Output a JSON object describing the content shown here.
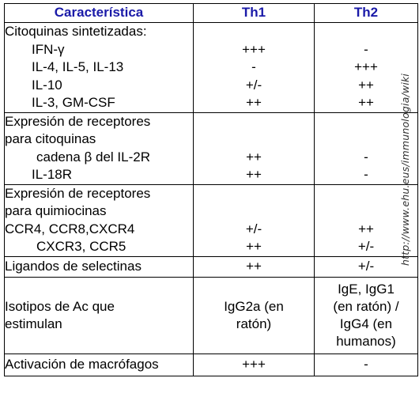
{
  "headers": {
    "feature": "Característica",
    "th1": "Th1",
    "th2": "Th2"
  },
  "sections": [
    {
      "lines": [
        {
          "label": "Citoquinas  sintetizadas:",
          "th1": "",
          "th2": "",
          "indent": 0
        },
        {
          "label": "IFN-γ",
          "th1": "+++",
          "th2": "-",
          "indent": 1
        },
        {
          "label": "IL-4, IL-5, IL-13",
          "th1": "-",
          "th2": "+++",
          "indent": 1
        },
        {
          "label": "IL-10",
          "th1": "+/-",
          "th2": "++",
          "indent": 1
        },
        {
          "label": "IL-3, GM-CSF",
          "th1": "++",
          "th2": "++",
          "indent": 1
        }
      ]
    },
    {
      "lines": [
        {
          "label": "Expresión de receptores",
          "th1": "",
          "th2": "",
          "indent": 0
        },
        {
          "label": "para citoquinas",
          "th1": "",
          "th2": "",
          "indent": 0
        },
        {
          "label": "cadena β  del IL-2R",
          "th1": "++",
          "th2": "-",
          "indent": 2
        },
        {
          "label": "IL-18R",
          "th1": "++",
          "th2": "-",
          "indent": 1
        }
      ]
    },
    {
      "lines": [
        {
          "label": "Expresión de receptores",
          "th1": "",
          "th2": "",
          "indent": 0
        },
        {
          "label": "para quimiocinas",
          "th1": "",
          "th2": "",
          "indent": 0
        },
        {
          "label": "CCR4, CCR8,CXCR4",
          "th1": "+/-",
          "th2": "++",
          "indent": 0
        },
        {
          "label": "CXCR3,  CCR5",
          "th1": "++",
          "th2": "+/-",
          "indent": 2
        }
      ]
    }
  ],
  "selectins": {
    "label": "Ligandos de selectinas",
    "th1": "++",
    "th2": "+/-"
  },
  "isotypes": {
    "label": [
      "Isotipos de Ac que",
      "estimulan"
    ],
    "th1": [
      "IgG2a (en",
      "ratón)"
    ],
    "th2": [
      "IgE, IgG1",
      "(en ratón) /",
      "IgG4 (en",
      "humanos)"
    ]
  },
  "macrophage": {
    "label": "Activación de macrófagos",
    "th1": "+++",
    "th2": "-"
  },
  "watermark": "http://www.ehu.eus/immunologia/wiki"
}
